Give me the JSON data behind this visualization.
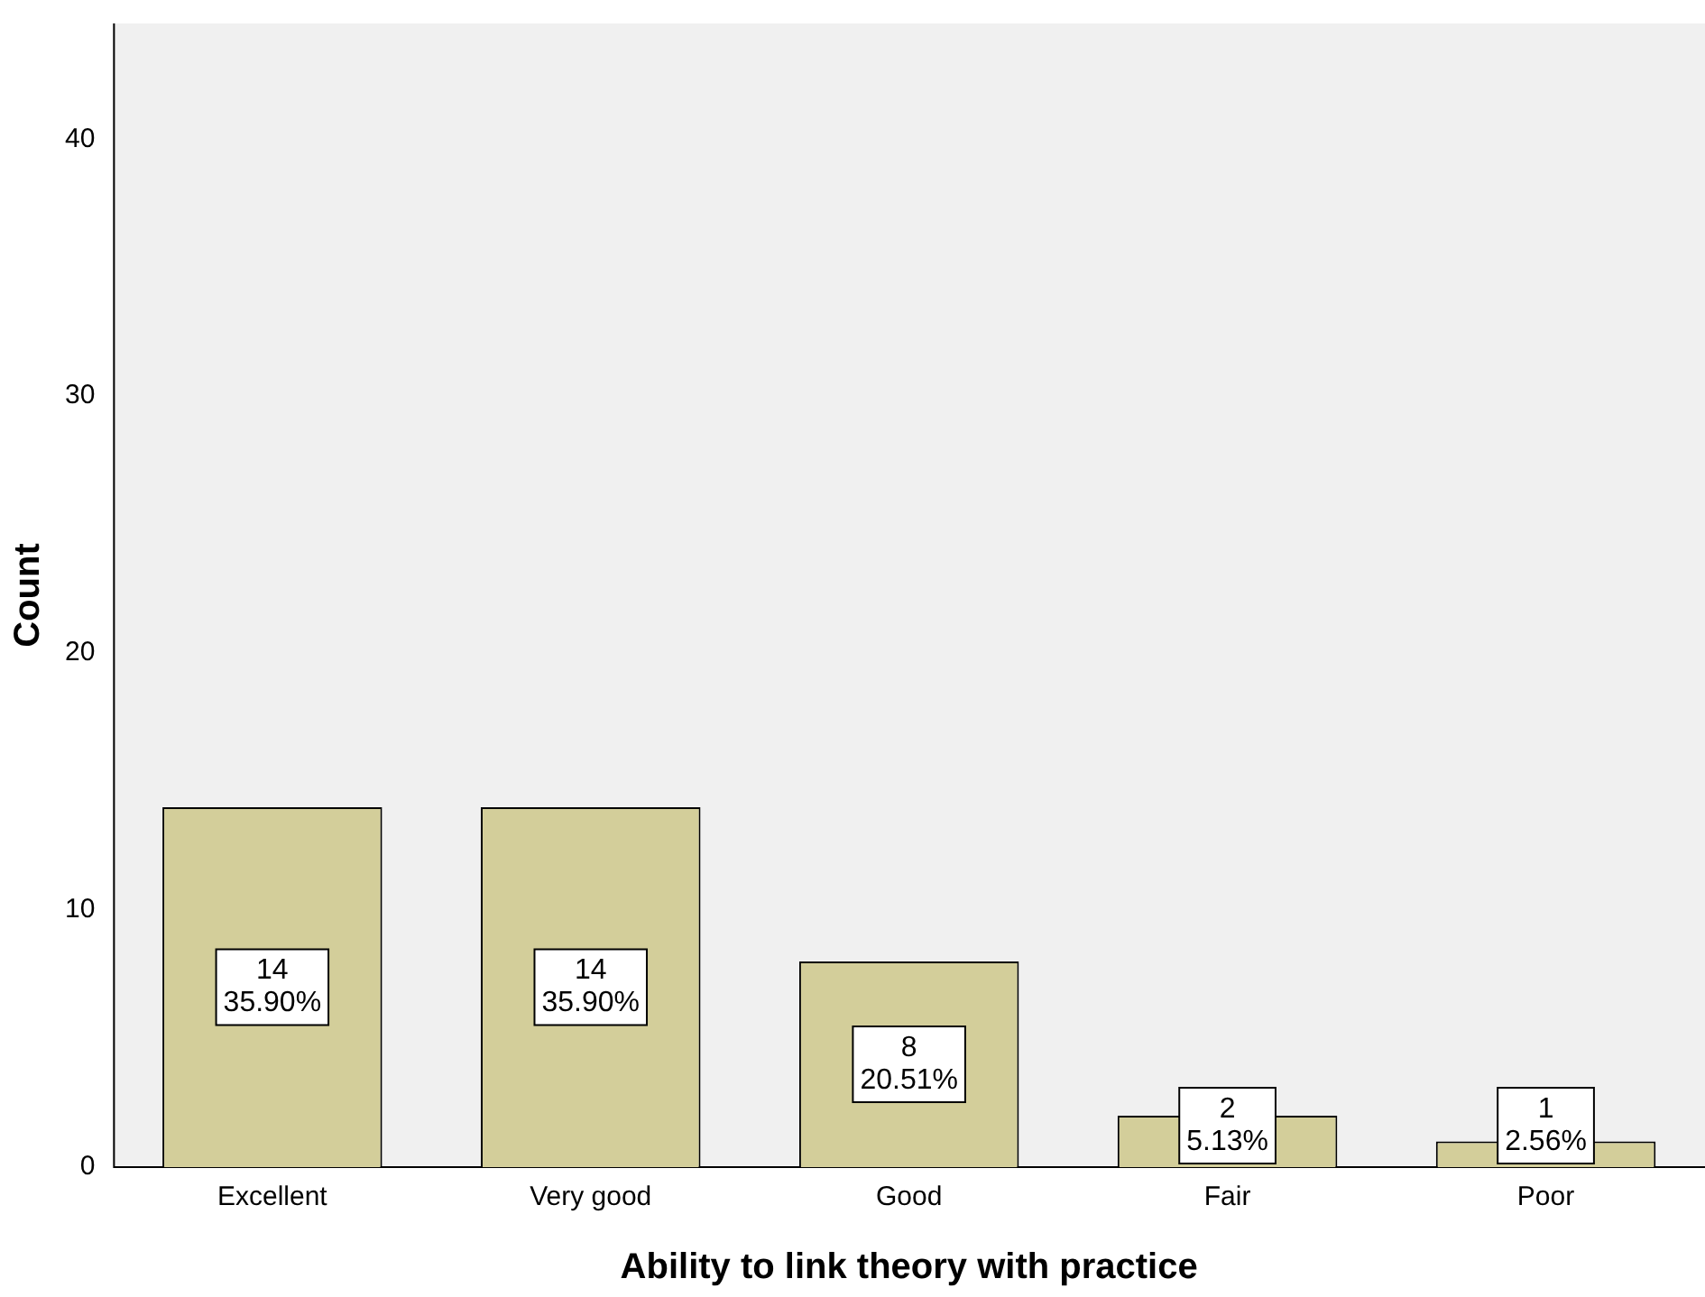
{
  "chart_data": {
    "type": "bar",
    "xlabel": "Ability to link theory with practice",
    "ylabel": "Count",
    "categories": [
      "Excellent",
      "Very good",
      "Good",
      "Fair",
      "Poor"
    ],
    "values": [
      14,
      14,
      8,
      2,
      1
    ],
    "color": "#d3ce9a",
    "value_labels": [
      "14\n35.90%",
      "14\n35.90%",
      "8\n20.51%",
      "2\n5.13%",
      "1\n2.56%"
    ],
    "ylim": [
      0,
      44.5
    ],
    "yticks": [
      0,
      10,
      20,
      30,
      40
    ],
    "grid": false,
    "legend": false
  }
}
